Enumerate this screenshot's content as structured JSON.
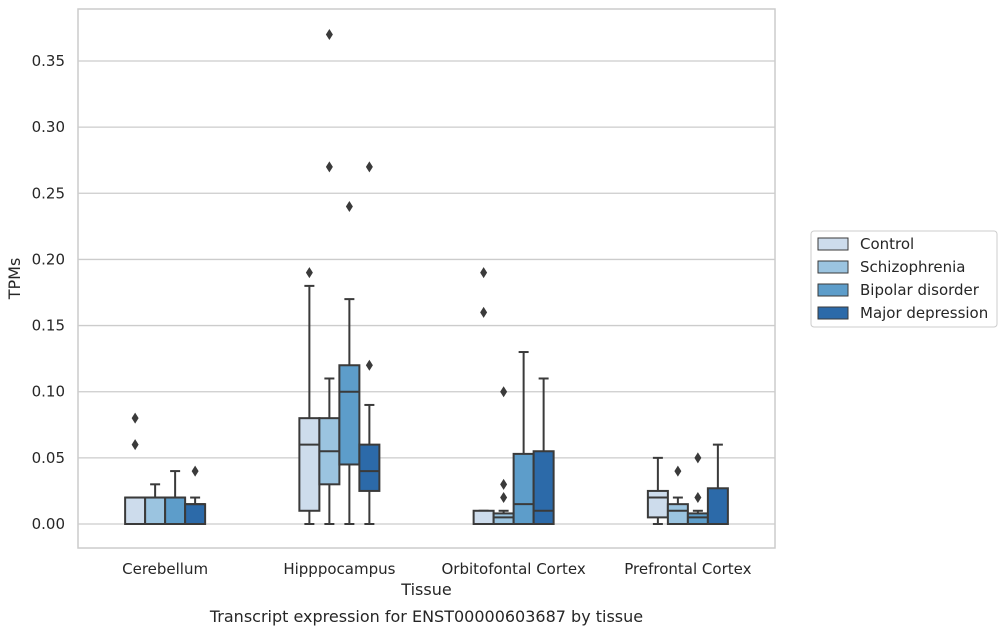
{
  "chart_data": {
    "type": "box",
    "title": "",
    "caption": "Transcript expression for ENST00000603687 by tissue",
    "xlabel": "Tissue",
    "ylabel": "TPMs",
    "ylim": [
      -0.018,
      0.39
    ],
    "yticks": [
      "0.00",
      "0.05",
      "0.10",
      "0.15",
      "0.20",
      "0.25",
      "0.30",
      "0.35"
    ],
    "ytick_values": [
      0,
      0.05,
      0.1,
      0.15,
      0.2,
      0.25,
      0.3,
      0.35
    ],
    "grid": "horizontal",
    "legend_position": "right",
    "categories": [
      "Cerebellum",
      "Hipppocampus",
      "Orbitofontal Cortex",
      "Prefrontal Cortex"
    ],
    "series": [
      {
        "name": "Control",
        "color": "#cddcec",
        "boxes": [
          {
            "whislo": 0.0,
            "q1": 0.0,
            "med": 0.02,
            "q3": 0.02,
            "whishi": 0.02,
            "fliers": [
              0.06,
              0.08
            ]
          },
          {
            "whislo": 0.0,
            "q1": 0.01,
            "med": 0.06,
            "q3": 0.08,
            "whishi": 0.18,
            "fliers": [
              0.19
            ]
          },
          {
            "whislo": 0.0,
            "q1": 0.0,
            "med": 0.0,
            "q3": 0.01,
            "whishi": 0.01,
            "fliers": [
              0.16,
              0.19
            ]
          },
          {
            "whislo": 0.0,
            "q1": 0.005,
            "med": 0.02,
            "q3": 0.025,
            "whishi": 0.05,
            "fliers": []
          }
        ]
      },
      {
        "name": "Schizophrenia",
        "color": "#9bc4e0",
        "boxes": [
          {
            "whislo": 0.0,
            "q1": 0.0,
            "med": 0.02,
            "q3": 0.02,
            "whishi": 0.03,
            "fliers": []
          },
          {
            "whislo": 0.0,
            "q1": 0.03,
            "med": 0.055,
            "q3": 0.08,
            "whishi": 0.11,
            "fliers": [
              0.27,
              0.37
            ]
          },
          {
            "whislo": 0.0,
            "q1": 0.0,
            "med": 0.005,
            "q3": 0.008,
            "whishi": 0.01,
            "fliers": [
              0.02,
              0.03,
              0.1
            ]
          },
          {
            "whislo": 0.0,
            "q1": 0.0,
            "med": 0.01,
            "q3": 0.015,
            "whishi": 0.02,
            "fliers": [
              0.04
            ]
          }
        ]
      },
      {
        "name": "Bipolar disorder",
        "color": "#5d9dca",
        "boxes": [
          {
            "whislo": 0.0,
            "q1": 0.0,
            "med": 0.02,
            "q3": 0.02,
            "whishi": 0.04,
            "fliers": []
          },
          {
            "whislo": 0.0,
            "q1": 0.045,
            "med": 0.1,
            "q3": 0.12,
            "whishi": 0.17,
            "fliers": [
              0.24
            ]
          },
          {
            "whislo": 0.0,
            "q1": 0.0,
            "med": 0.015,
            "q3": 0.053,
            "whishi": 0.13,
            "fliers": []
          },
          {
            "whislo": 0.0,
            "q1": 0.0,
            "med": 0.005,
            "q3": 0.008,
            "whishi": 0.01,
            "fliers": [
              0.02,
              0.05
            ]
          }
        ]
      },
      {
        "name": "Major depression",
        "color": "#2c6aa9",
        "boxes": [
          {
            "whislo": 0.0,
            "q1": 0.0,
            "med": 0.015,
            "q3": 0.015,
            "whishi": 0.02,
            "fliers": [
              0.04
            ]
          },
          {
            "whislo": 0.0,
            "q1": 0.025,
            "med": 0.04,
            "q3": 0.06,
            "whishi": 0.09,
            "fliers": [
              0.12,
              0.27
            ]
          },
          {
            "whislo": 0.0,
            "q1": 0.0,
            "med": 0.01,
            "q3": 0.055,
            "whishi": 0.11,
            "fliers": []
          },
          {
            "whislo": 0.0,
            "q1": 0.0,
            "med": 0.0,
            "q3": 0.027,
            "whishi": 0.06,
            "fliers": []
          }
        ]
      }
    ]
  }
}
